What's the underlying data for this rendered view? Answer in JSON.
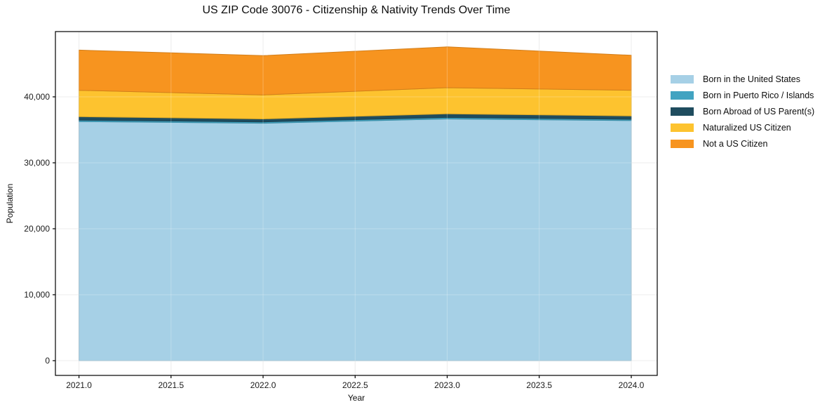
{
  "title": "US ZIP Code 30076 - Citizenship & Nativity Trends Over Time",
  "chart_data": {
    "type": "area",
    "stacked": true,
    "title": "US ZIP Code 30076 - Citizenship & Nativity Trends Over Time",
    "xlabel": "Year",
    "ylabel": "Population",
    "x": [
      2021,
      2022,
      2023,
      2024
    ],
    "series": [
      {
        "name": "Born in the United States",
        "color": "#a6d0e6",
        "values": [
          36250,
          36000,
          36650,
          36400
        ]
      },
      {
        "name": "Born in Puerto Rico / Islands",
        "color": "#41a3c1",
        "values": [
          220,
          200,
          220,
          200
        ]
      },
      {
        "name": "Born Abroad of US Parent(s)",
        "color": "#1f4c5e",
        "values": [
          520,
          450,
          560,
          500
        ]
      },
      {
        "name": "Naturalized US Citizen",
        "color": "#fdc32f",
        "values": [
          4000,
          3650,
          3950,
          3900
        ]
      },
      {
        "name": "Not a US Citizen",
        "color": "#f7941f",
        "values": [
          6100,
          5950,
          6200,
          5300
        ]
      }
    ],
    "totals": [
      47090,
      46250,
      47580,
      46300
    ],
    "xticks": {
      "values": [
        2021.0,
        2021.5,
        2022.0,
        2022.5,
        2023.0,
        2023.5,
        2024.0
      ],
      "labels": [
        "2021.0",
        "2021.5",
        "2022.0",
        "2022.5",
        "2023.0",
        "2023.5",
        "2024.0"
      ]
    },
    "yticks": {
      "values": [
        0,
        10000,
        20000,
        30000,
        40000
      ],
      "labels": [
        "0",
        "10,000",
        "20,000",
        "30,000",
        "40,000"
      ]
    },
    "xlim": [
      2020.872,
      2024.141
    ],
    "ylim": [
      -2234,
      49894
    ],
    "grid": true,
    "legend_position": "right-outside",
    "background_color": "#ffffff",
    "spine_color": "#000000"
  }
}
